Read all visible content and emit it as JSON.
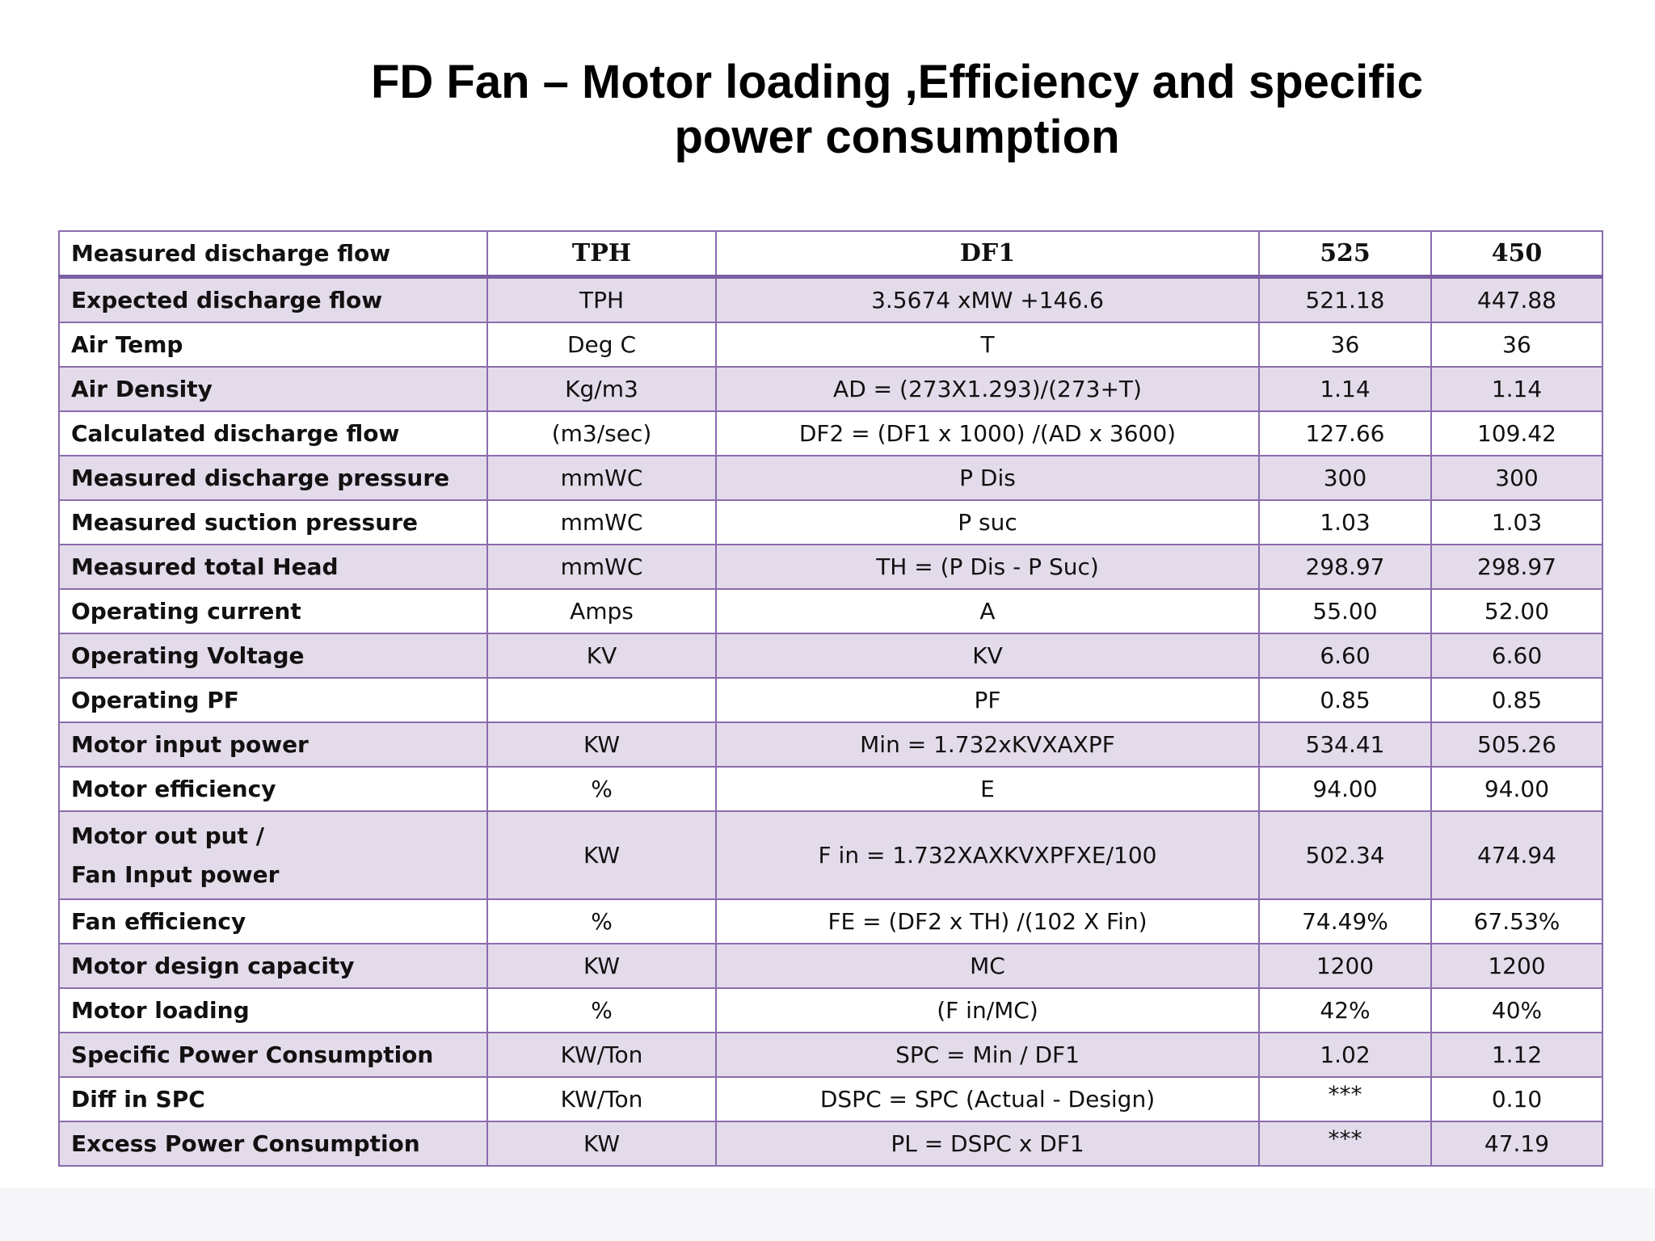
{
  "title": {
    "line1": "FD Fan – Motor loading ,Efficiency and specific",
    "line2": "power consumption"
  },
  "table": {
    "header": {
      "parameter": "Measured discharge flow",
      "unit": "TPH",
      "formula": "DF1",
      "value1": "525",
      "value2": "450"
    },
    "rows": [
      {
        "parameter": "Expected discharge flow",
        "unit": "TPH",
        "formula": "3.5674 xMW +146.6",
        "value1": "521.18",
        "value2": "447.88"
      },
      {
        "parameter": "Air Temp",
        "unit": "Deg C",
        "formula": "T",
        "value1": "36",
        "value2": "36"
      },
      {
        "parameter": "Air Density",
        "unit": "Kg/m3",
        "formula": "AD = (273X1.293)/(273+T)",
        "value1": "1.14",
        "value2": "1.14"
      },
      {
        "parameter": "Calculated discharge flow",
        "unit": "(m3/sec)",
        "formula": "DF2 = (DF1 x 1000) /(AD x 3600)",
        "value1": "127.66",
        "value2": "109.42"
      },
      {
        "parameter": "Measured discharge pressure",
        "unit": "mmWC",
        "formula": "P Dis",
        "value1": "300",
        "value2": "300"
      },
      {
        "parameter": "Measured suction pressure",
        "unit": "mmWC",
        "formula": "P suc",
        "value1": "1.03",
        "value2": "1.03"
      },
      {
        "parameter": "Measured total Head",
        "unit": "mmWC",
        "formula": "TH = (P Dis - P Suc)",
        "value1": "298.97",
        "value2": "298.97"
      },
      {
        "parameter": "Operating current",
        "unit": "Amps",
        "formula": "A",
        "value1": "55.00",
        "value2": "52.00"
      },
      {
        "parameter": "Operating Voltage",
        "unit": "KV",
        "formula": "KV",
        "value1": "6.60",
        "value2": "6.60"
      },
      {
        "parameter": "Operating PF",
        "unit": "",
        "formula": "PF",
        "value1": "0.85",
        "value2": "0.85"
      },
      {
        "parameter": "Motor input  power",
        "unit": "KW",
        "formula": "Min = 1.732xKVXAXPF",
        "value1": "534.41",
        "value2": "505.26"
      },
      {
        "parameter": "Motor efficiency",
        "unit": "%",
        "formula": "E",
        "value1": "94.00",
        "value2": "94.00"
      },
      {
        "parameter_line1": "Motor out put /",
        "parameter_line2": "Fan Input power",
        "unit": "KW",
        "formula": "F in = 1.732XAXKVXPFXE/100",
        "value1": "502.34",
        "value2": "474.94"
      },
      {
        "parameter": "Fan efficiency",
        "unit": "%",
        "formula": "FE = (DF2 x TH) /(102 X Fin)",
        "value1": "74.49%",
        "value2": "67.53%"
      },
      {
        "parameter": "Motor design capacity",
        "unit": "KW",
        "formula": "MC",
        "value1": "1200",
        "value2": "1200"
      },
      {
        "parameter": "Motor loading",
        "unit": "%",
        "formula": "(F in/MC)",
        "value1": "42%",
        "value2": "40%"
      },
      {
        "parameter": "Specific Power Consumption",
        "unit": "KW/Ton",
        "formula": "SPC = Min / DF1",
        "value1": "1.02",
        "value2": "1.12"
      },
      {
        "parameter": "Diff in SPC",
        "unit": "KW/Ton",
        "formula": "DSPC = SPC (Actual - Design)",
        "value1": "***",
        "value2": "0.10"
      },
      {
        "parameter": "Excess Power Consumption",
        "unit": "KW",
        "formula": "PL = DSPC x DF1",
        "value1": "***",
        "value2": "47.19"
      }
    ]
  }
}
